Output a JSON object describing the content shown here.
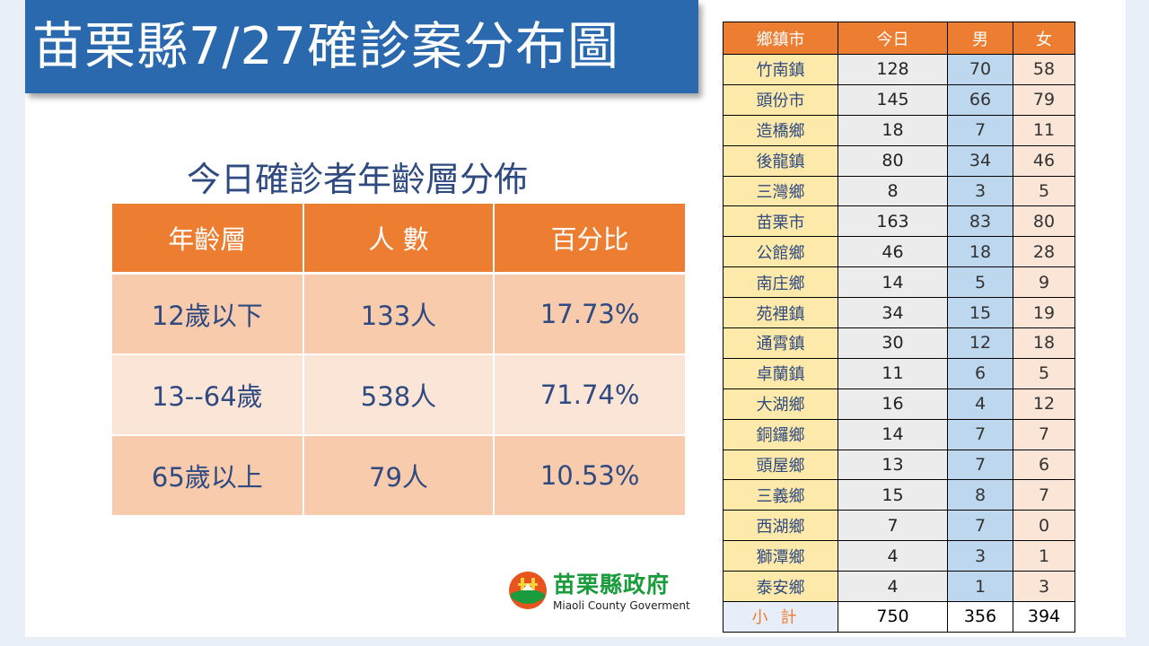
{
  "title": "苗栗縣7/27確診案分布圖",
  "age_table": {
    "caption": "今日確診者年齡層分佈",
    "headers": [
      "年齡層",
      "人 數",
      "百分比"
    ],
    "rows": [
      {
        "group": "12歲以下",
        "count": "133人",
        "percent": "17.73%"
      },
      {
        "group": "13--64歲",
        "count": "538人",
        "percent": "71.74%"
      },
      {
        "group": "65歲以上",
        "count": "79人",
        "percent": "10.53%"
      }
    ]
  },
  "district_table": {
    "headers": [
      "鄉鎮市",
      "今日",
      "男",
      "女"
    ],
    "rows": [
      {
        "town": "竹南鎮",
        "today": "128",
        "male": "70",
        "female": "58"
      },
      {
        "town": "頭份市",
        "today": "145",
        "male": "66",
        "female": "79"
      },
      {
        "town": "造橋鄉",
        "today": "18",
        "male": "7",
        "female": "11"
      },
      {
        "town": "後龍鎮",
        "today": "80",
        "male": "34",
        "female": "46"
      },
      {
        "town": "三灣鄉",
        "today": "8",
        "male": "3",
        "female": "5"
      },
      {
        "town": "苗栗市",
        "today": "163",
        "male": "83",
        "female": "80"
      },
      {
        "town": "公館鄉",
        "today": "46",
        "male": "18",
        "female": "28"
      },
      {
        "town": "南庄鄉",
        "today": "14",
        "male": "5",
        "female": "9"
      },
      {
        "town": "苑裡鎮",
        "today": "34",
        "male": "15",
        "female": "19"
      },
      {
        "town": "通霄鎮",
        "today": "30",
        "male": "12",
        "female": "18"
      },
      {
        "town": "卓蘭鎮",
        "today": "11",
        "male": "6",
        "female": "5"
      },
      {
        "town": "大湖鄉",
        "today": "16",
        "male": "4",
        "female": "12"
      },
      {
        "town": "銅鑼鄉",
        "today": "14",
        "male": "7",
        "female": "7"
      },
      {
        "town": "頭屋鄉",
        "today": "13",
        "male": "7",
        "female": "6"
      },
      {
        "town": "三義鄉",
        "today": "15",
        "male": "8",
        "female": "7"
      },
      {
        "town": "西湖鄉",
        "today": "7",
        "male": "7",
        "female": "0"
      },
      {
        "town": "獅潭鄉",
        "today": "4",
        "male": "3",
        "female": "1"
      },
      {
        "town": "泰安鄉",
        "today": "4",
        "male": "1",
        "female": "3"
      }
    ],
    "total": {
      "town": "小計",
      "today": "750",
      "male": "356",
      "female": "394"
    }
  },
  "logo": {
    "name": "苗栗縣政府",
    "english": "Miaoli County Goverment",
    "icon": "county-emblem-icon"
  },
  "colors": {
    "title_banner": "#2a69ad",
    "header_orange": "#ed7d31",
    "text_blue": "#2e4a80",
    "logo_green": "#1a9b3c"
  }
}
